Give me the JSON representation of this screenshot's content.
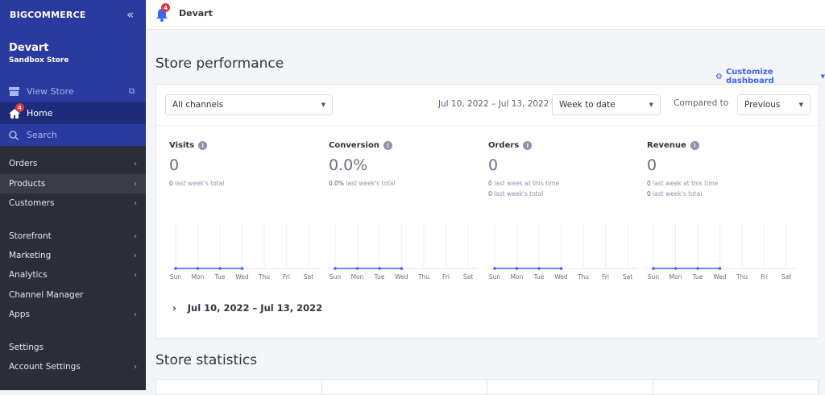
{
  "sidebar": {
    "logo": "BIGCOMMERCE",
    "store_name": "Devart",
    "store_subtitle": "Sandbox Store",
    "view_store": "View Store",
    "home": "Home",
    "home_badge": "4",
    "search": "Search",
    "items": [
      {
        "label": "Orders",
        "chevron": true
      },
      {
        "label": "Products",
        "chevron": true
      },
      {
        "label": "Customers",
        "chevron": true
      },
      {
        "label": "Storefront",
        "chevron": true
      },
      {
        "label": "Marketing",
        "chevron": true
      },
      {
        "label": "Analytics",
        "chevron": true
      },
      {
        "label": "Channel Manager",
        "chevron": false
      },
      {
        "label": "Apps",
        "chevron": true
      },
      {
        "label": "Settings",
        "chevron": false
      },
      {
        "label": "Account Settings",
        "chevron": true
      }
    ]
  },
  "header": {
    "title": "Devart",
    "notification_count": "4"
  },
  "main": {
    "title": "Store performance",
    "customize": "Customize dashboard",
    "channel_select": "All channels",
    "date_range": "Jul 10, 2022 – Jul 13, 2022",
    "period_select": "Week to date",
    "compared_label": "Compared to",
    "compare_select": "Previous",
    "metrics": [
      {
        "label": "Visits",
        "value": "0",
        "subs": [
          {
            "v": "0",
            "t": "last week's total"
          }
        ]
      },
      {
        "label": "Conversion",
        "value": "0.0%",
        "subs": [
          {
            "v": "0.0%",
            "t": "last week's total"
          }
        ]
      },
      {
        "label": "Orders",
        "value": "0",
        "subs": [
          {
            "v": "0",
            "t": "last week at this time"
          },
          {
            "v": "0",
            "t": "last week's total"
          }
        ]
      },
      {
        "label": "Revenue",
        "value": "0",
        "subs": [
          {
            "v": "0",
            "t": "last week at this time"
          },
          {
            "v": "0",
            "t": "last week's total"
          }
        ]
      }
    ],
    "expand_range": "Jul 10, 2022 – Jul 13, 2022",
    "stats_title": "Store statistics"
  },
  "colors": {
    "accent": "#3c64f4",
    "sidebar_blue": "#2b3a9f",
    "badge": "#db3643"
  },
  "chart_data": [
    {
      "type": "line",
      "title": "Visits",
      "categories": [
        "Sun",
        "Mon",
        "Tue",
        "Wed",
        "Thu",
        "Fri",
        "Sat"
      ],
      "values": [
        0,
        0,
        0,
        0,
        null,
        null,
        null
      ]
    },
    {
      "type": "line",
      "title": "Conversion",
      "categories": [
        "Sun",
        "Mon",
        "Tue",
        "Wed",
        "Thu",
        "Fri",
        "Sat"
      ],
      "values": [
        0,
        0,
        0,
        0,
        null,
        null,
        null
      ]
    },
    {
      "type": "line",
      "title": "Orders",
      "categories": [
        "Sun",
        "Mon",
        "Tue",
        "Wed",
        "Thu",
        "Fri",
        "Sat"
      ],
      "values": [
        0,
        0,
        0,
        0,
        null,
        null,
        null
      ]
    },
    {
      "type": "line",
      "title": "Revenue",
      "categories": [
        "Sun",
        "Mon",
        "Tue",
        "Wed",
        "Thu",
        "Fri",
        "Sat"
      ],
      "values": [
        0,
        0,
        0,
        0,
        null,
        null,
        null
      ]
    }
  ]
}
